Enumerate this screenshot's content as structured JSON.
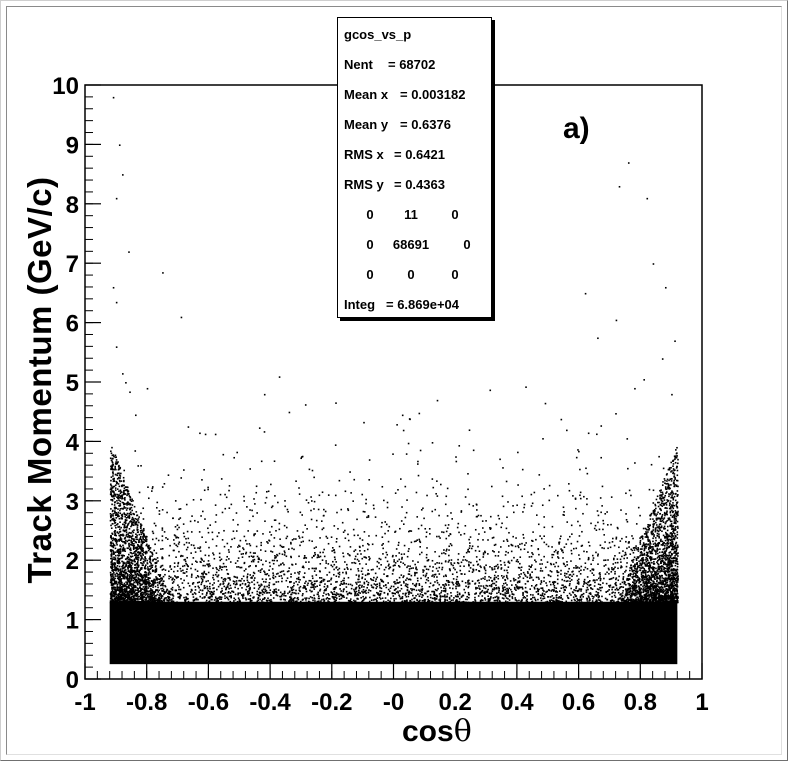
{
  "stats_box": {
    "name": "gcos_vs_p",
    "rows": [
      {
        "label": "Nent",
        "value": "= 68702"
      },
      {
        "label": "Mean x",
        "value": "= 0.003182"
      },
      {
        "label": "Mean y",
        "value": "= 0.6376"
      },
      {
        "label": "RMS x",
        "value": "= 0.6421"
      },
      {
        "label": "RMS y",
        "value": "= 0.4363"
      }
    ],
    "grid": [
      [
        "0",
        "11",
        "0"
      ],
      [
        "0",
        "68691",
        "0"
      ],
      [
        "0",
        "0",
        "0"
      ]
    ],
    "integ": {
      "label": "Integ",
      "value": "= 6.869e+04"
    }
  },
  "annotation": "a)",
  "chart_data": {
    "type": "scatter",
    "title": "",
    "xlabel": "cosθ",
    "ylabel": "Track Momentum (GeV/c)",
    "xlim": [
      -1,
      1
    ],
    "ylim": [
      0,
      10
    ],
    "x_ticks": [
      "-1",
      "-0.8",
      "-0.6",
      "-0.4",
      "-0.2",
      "-0",
      "0.2",
      "0.4",
      "0.6",
      "0.8",
      "1"
    ],
    "y_ticks": [
      "0",
      "1",
      "2",
      "3",
      "4",
      "5",
      "6",
      "7",
      "8",
      "9",
      "10"
    ],
    "grid": false,
    "marker_color": "#000000",
    "entries": 68702,
    "dense_band": {
      "x_range": [
        -0.92,
        0.92
      ],
      "y_range": [
        0.25,
        1.3
      ]
    },
    "edge_enhancement": {
      "x_abs_min": 0.72,
      "y_max_at_edge": 4.0
    },
    "sparse_points": [
      [
        -0.91,
        9.8
      ],
      [
        -0.89,
        9.0
      ],
      [
        -0.88,
        8.5
      ],
      [
        -0.9,
        8.1
      ],
      [
        -0.86,
        7.2
      ],
      [
        -0.75,
        6.85
      ],
      [
        -0.91,
        6.6
      ],
      [
        -0.9,
        6.35
      ],
      [
        -0.69,
        6.1
      ],
      [
        -0.9,
        5.6
      ],
      [
        -0.88,
        5.15
      ],
      [
        -0.87,
        5.0
      ],
      [
        -0.8,
        4.9
      ],
      [
        -0.93,
        4.75
      ],
      [
        -0.42,
        4.8
      ],
      [
        -0.34,
        4.5
      ],
      [
        -0.63,
        4.15
      ],
      [
        -0.3,
        3.75
      ],
      [
        -0.19,
        3.95
      ],
      [
        -0.08,
        3.7
      ],
      [
        0.04,
        3.8
      ],
      [
        0.2,
        3.75
      ],
      [
        0.14,
        4.7
      ],
      [
        0.49,
        4.65
      ],
      [
        0.76,
        8.7
      ],
      [
        0.73,
        8.3
      ],
      [
        0.82,
        8.1
      ],
      [
        0.88,
        6.6
      ],
      [
        0.84,
        7.0
      ],
      [
        0.91,
        5.7
      ],
      [
        0.72,
        6.05
      ],
      [
        0.66,
        5.75
      ],
      [
        0.62,
        6.5
      ],
      [
        0.87,
        5.4
      ],
      [
        0.81,
        5.05
      ],
      [
        0.78,
        4.9
      ],
      [
        0.9,
        4.8
      ],
      [
        0.63,
        4.15
      ],
      [
        0.47,
        3.45
      ],
      [
        0.53,
        3.1
      ],
      [
        -0.27,
        2.85
      ],
      [
        0.66,
        2.65
      ]
    ]
  }
}
